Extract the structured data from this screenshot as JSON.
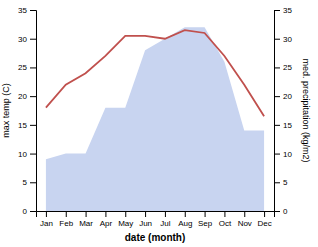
{
  "chart_data": {
    "type": "line",
    "categories": [
      "Jan",
      "Feb",
      "Mar",
      "Apr",
      "May",
      "Jun",
      "Jul",
      "Aug",
      "Sep",
      "Oct",
      "Nov",
      "Dec"
    ],
    "series": [
      {
        "type": "area",
        "axis": "y2",
        "color": "#c8d4f0",
        "values": [
          9,
          10,
          10,
          18,
          18,
          28,
          30,
          32,
          32,
          26,
          14,
          14
        ]
      },
      {
        "type": "line",
        "color": "#c0504d",
        "values": [
          18,
          22,
          24,
          27,
          30.5,
          30.5,
          30,
          31.5,
          31,
          27,
          22,
          16.5
        ]
      }
    ],
    "xlabel": "date (month)",
    "ylabel": "max temp (C)",
    "y2label": "med. precipitation (kg/m2)",
    "ylim": [
      0,
      35
    ],
    "yticks": [
      0,
      5,
      10,
      15,
      20,
      25,
      30,
      35
    ],
    "y2lim": [
      0,
      35
    ],
    "y2ticks": [
      0,
      5,
      10,
      15,
      20,
      25,
      30,
      35
    ],
    "grid": false
  }
}
